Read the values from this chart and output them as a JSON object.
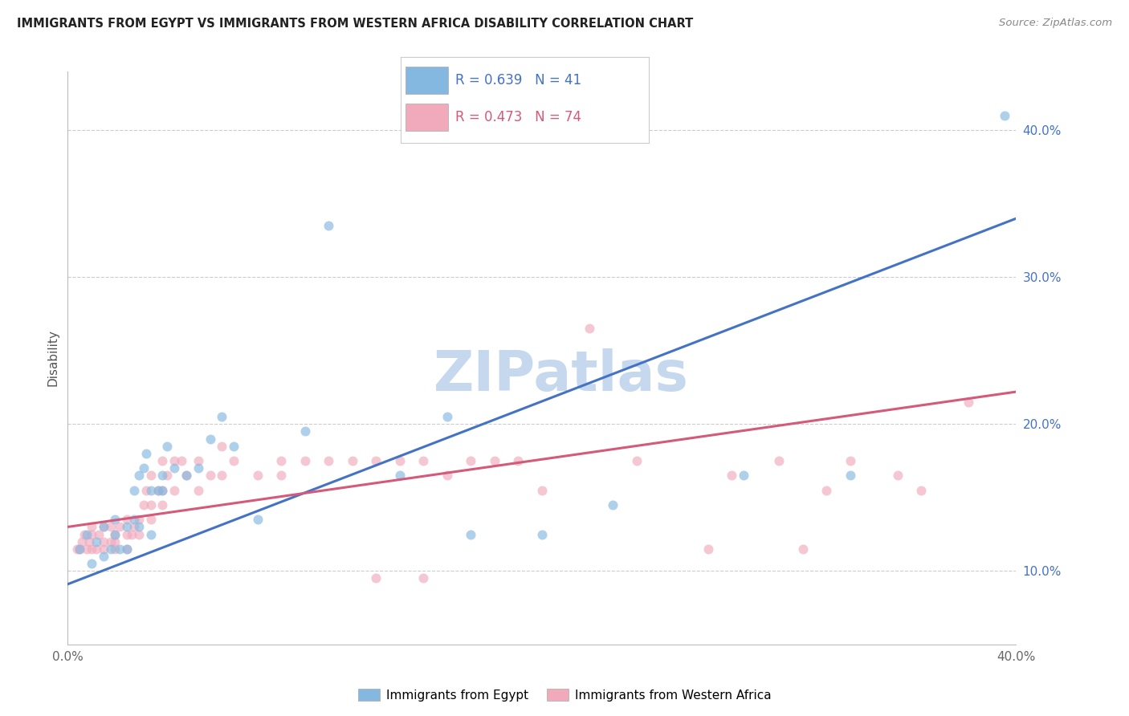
{
  "title": "IMMIGRANTS FROM EGYPT VS IMMIGRANTS FROM WESTERN AFRICA DISABILITY CORRELATION CHART",
  "source": "Source: ZipAtlas.com",
  "ylabel": "Disability",
  "xlim": [
    0.0,
    0.4
  ],
  "ylim": [
    0.05,
    0.44
  ],
  "ytick_labels": [
    "10.0%",
    "20.0%",
    "30.0%",
    "40.0%"
  ],
  "ytick_vals": [
    0.1,
    0.2,
    0.3,
    0.4
  ],
  "xtick_vals": [
    0.0,
    0.05,
    0.1,
    0.15,
    0.2,
    0.25,
    0.3,
    0.35,
    0.4
  ],
  "xtick_labels": [
    "0.0%",
    "",
    "",
    "",
    "",
    "",
    "",
    "",
    "40.0%"
  ],
  "egypt_color": "#85B8E0",
  "west_africa_color": "#F0AABC",
  "egypt_line_color": "#4472C4",
  "west_africa_line_color": "#D45A7A",
  "egypt_R": 0.639,
  "egypt_N": 41,
  "west_africa_R": 0.473,
  "west_africa_N": 74,
  "egypt_scatter_x": [
    0.005,
    0.008,
    0.01,
    0.012,
    0.015,
    0.015,
    0.018,
    0.02,
    0.02,
    0.022,
    0.025,
    0.025,
    0.028,
    0.028,
    0.03,
    0.03,
    0.032,
    0.033,
    0.035,
    0.035,
    0.038,
    0.04,
    0.04,
    0.042,
    0.045,
    0.05,
    0.055,
    0.06,
    0.065,
    0.07,
    0.08,
    0.1,
    0.11,
    0.14,
    0.16,
    0.17,
    0.2,
    0.23,
    0.285,
    0.33,
    0.395
  ],
  "egypt_scatter_y": [
    0.115,
    0.125,
    0.105,
    0.12,
    0.13,
    0.11,
    0.115,
    0.125,
    0.135,
    0.115,
    0.115,
    0.13,
    0.135,
    0.155,
    0.13,
    0.165,
    0.17,
    0.18,
    0.125,
    0.155,
    0.155,
    0.155,
    0.165,
    0.185,
    0.17,
    0.165,
    0.17,
    0.19,
    0.205,
    0.185,
    0.135,
    0.195,
    0.335,
    0.165,
    0.205,
    0.125,
    0.125,
    0.145,
    0.165,
    0.165,
    0.41
  ],
  "west_africa_scatter_x": [
    0.004,
    0.005,
    0.006,
    0.007,
    0.008,
    0.009,
    0.01,
    0.01,
    0.01,
    0.012,
    0.013,
    0.015,
    0.015,
    0.015,
    0.018,
    0.018,
    0.02,
    0.02,
    0.02,
    0.022,
    0.025,
    0.025,
    0.025,
    0.027,
    0.028,
    0.03,
    0.03,
    0.032,
    0.033,
    0.035,
    0.035,
    0.035,
    0.038,
    0.04,
    0.04,
    0.04,
    0.042,
    0.045,
    0.045,
    0.048,
    0.05,
    0.055,
    0.055,
    0.06,
    0.065,
    0.065,
    0.07,
    0.08,
    0.09,
    0.09,
    0.1,
    0.11,
    0.12,
    0.13,
    0.13,
    0.14,
    0.15,
    0.15,
    0.16,
    0.17,
    0.18,
    0.19,
    0.2,
    0.22,
    0.24,
    0.27,
    0.28,
    0.3,
    0.31,
    0.32,
    0.33,
    0.35,
    0.36,
    0.38
  ],
  "west_africa_scatter_y": [
    0.115,
    0.115,
    0.12,
    0.125,
    0.115,
    0.12,
    0.115,
    0.125,
    0.13,
    0.115,
    0.125,
    0.115,
    0.12,
    0.13,
    0.12,
    0.13,
    0.115,
    0.12,
    0.125,
    0.13,
    0.115,
    0.125,
    0.135,
    0.125,
    0.13,
    0.125,
    0.135,
    0.145,
    0.155,
    0.135,
    0.145,
    0.165,
    0.155,
    0.145,
    0.155,
    0.175,
    0.165,
    0.155,
    0.175,
    0.175,
    0.165,
    0.155,
    0.175,
    0.165,
    0.165,
    0.185,
    0.175,
    0.165,
    0.165,
    0.175,
    0.175,
    0.175,
    0.175,
    0.175,
    0.095,
    0.175,
    0.175,
    0.095,
    0.165,
    0.175,
    0.175,
    0.175,
    0.155,
    0.265,
    0.175,
    0.115,
    0.165,
    0.175,
    0.115,
    0.155,
    0.175,
    0.165,
    0.155,
    0.215
  ],
  "egypt_line_x": [
    0.0,
    0.4
  ],
  "egypt_line_y": [
    0.091,
    0.34
  ],
  "west_africa_line_x": [
    0.0,
    0.4
  ],
  "west_africa_line_y": [
    0.13,
    0.222
  ],
  "background_color": "#FFFFFF",
  "grid_color": "#CCCCCC",
  "watermark_text": "ZIPatlas",
  "watermark_color": "#C5D8EE",
  "scatter_size": 75,
  "scatter_alpha": 0.65,
  "legend_text1": "R = 0.639   N = 41",
  "legend_text2": "R = 0.473   N = 74",
  "legend_color1": "#4472C4",
  "legend_color2": "#D45A7A",
  "bottom_label1": "Immigrants from Egypt",
  "bottom_label2": "Immigrants from Western Africa"
}
